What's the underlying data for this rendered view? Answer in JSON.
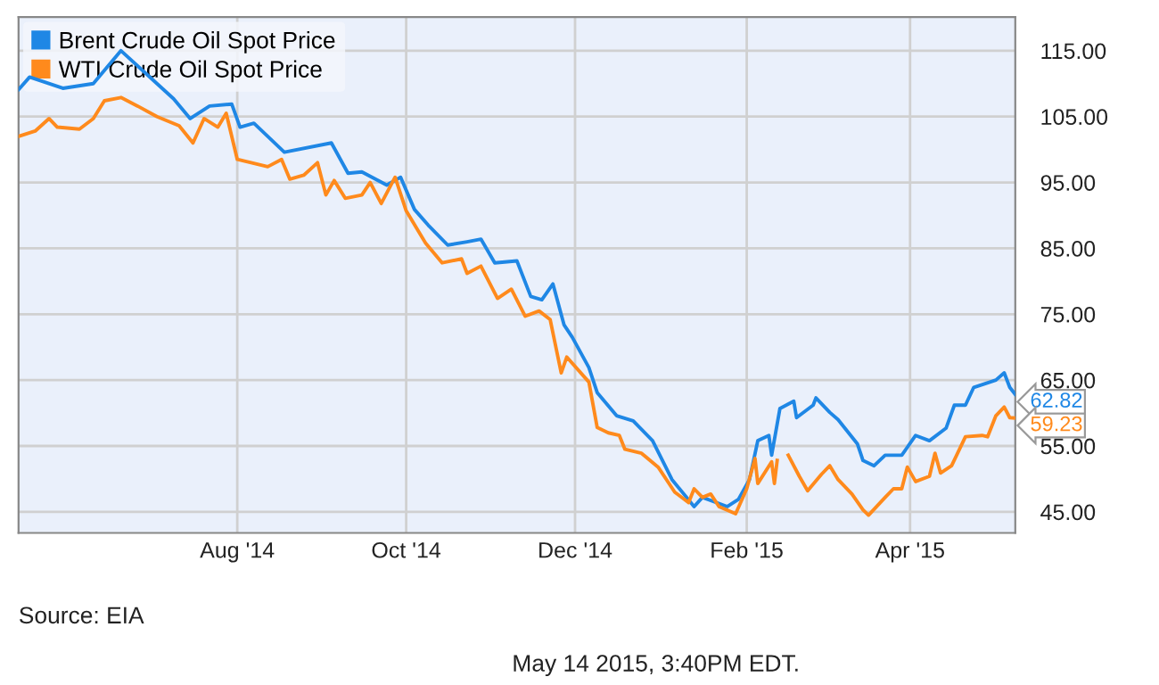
{
  "chart_data": {
    "type": "line",
    "legend": "top left",
    "grid": true,
    "marker": "none",
    "line_style": "solid",
    "xlim": [
      "2014-05-14",
      "2015-05-09"
    ],
    "ylim": [
      41.8,
      120.1
    ],
    "xticks": [
      {
        "value": "2014-08-01",
        "label": "Aug '14"
      },
      {
        "value": "2014-10-01",
        "label": "Oct '14"
      },
      {
        "value": "2014-12-01",
        "label": "Dec '14"
      },
      {
        "value": "2015-02-01",
        "label": "Feb '15"
      },
      {
        "value": "2015-04-01",
        "label": "Apr '15"
      }
    ],
    "yticks": [
      {
        "value": 45,
        "label": "45.00"
      },
      {
        "value": 55,
        "label": "55.00"
      },
      {
        "value": 65,
        "label": "65.00"
      },
      {
        "value": 75,
        "label": "75.00"
      },
      {
        "value": 85,
        "label": "85.00"
      },
      {
        "value": 95,
        "label": "95.00"
      },
      {
        "value": 105,
        "label": "105.00"
      },
      {
        "value": 115,
        "label": "115.00"
      }
    ],
    "series": [
      {
        "name": "Brent Crude Oil Spot Price",
        "color": "#1f87e5",
        "x": [
          "2014-05-14",
          "2014-05-18",
          "2014-05-30",
          "2014-06-10",
          "2014-06-20",
          "2014-07-03",
          "2014-07-09",
          "2014-07-15",
          "2014-07-22",
          "2014-07-30",
          "2014-08-02",
          "2014-08-07",
          "2014-08-18",
          "2014-09-04",
          "2014-09-10",
          "2014-09-15",
          "2014-09-24",
          "2014-09-29",
          "2014-10-04",
          "2014-10-09",
          "2014-10-16",
          "2014-10-23",
          "2014-10-28",
          "2014-11-02",
          "2014-11-10",
          "2014-11-15",
          "2014-11-19",
          "2014-11-23",
          "2014-11-27",
          "2014-11-30",
          "2014-12-06",
          "2014-12-09",
          "2014-12-16",
          "2014-12-22",
          "2014-12-29",
          "2015-01-05",
          "2015-01-13",
          "2015-01-16",
          "2015-01-25",
          "2015-01-29",
          "2015-02-02",
          "2015-02-05",
          "2015-02-09",
          "2015-02-10",
          "2015-02-13",
          "2015-02-18",
          "2015-02-19",
          "2015-02-25",
          "2015-02-26",
          "2015-03-03",
          "2015-03-06",
          "2015-03-13",
          "2015-03-15",
          "2015-03-19",
          "2015-03-23",
          "2015-03-29",
          "2015-04-03",
          "2015-04-08",
          "2015-04-14",
          "2015-04-17",
          "2015-04-21",
          "2015-04-24",
          "2015-05-02",
          "2015-05-05",
          "2015-05-07",
          "2015-05-09"
        ],
        "values": [
          109.1,
          111,
          109.3,
          110,
          115,
          110,
          107.7,
          104.7,
          106.6,
          106.9,
          103.4,
          104,
          99.6,
          101,
          96.4,
          96.6,
          94.6,
          95.8,
          90.9,
          88.5,
          85.5,
          86,
          86.4,
          82.8,
          83.1,
          77.7,
          77.2,
          79.6,
          73.4,
          71.5,
          66.9,
          63.1,
          59.6,
          58.8,
          55.8,
          49.9,
          45.8,
          47.2,
          45.8,
          46.9,
          49.9,
          55.8,
          56.6,
          53.6,
          60.7,
          61.8,
          59.3,
          61.2,
          62.3,
          60.1,
          59,
          55.3,
          52.8,
          52,
          53.6,
          53.6,
          56.6,
          55.8,
          57.7,
          61.2,
          61.2,
          63.9,
          65,
          66.1,
          63.9,
          62.82
        ]
      },
      {
        "name": "WTI Crude Oil Spot Price",
        "color": "#ff8a1c",
        "x": [
          "2014-05-14",
          "2014-05-20",
          "2014-05-25",
          "2014-05-28",
          "2014-06-05",
          "2014-06-10",
          "2014-06-14",
          "2014-06-20",
          "2014-06-26",
          "2014-07-03",
          "2014-07-11",
          "2014-07-16",
          "2014-07-20",
          "2014-07-25",
          "2014-07-28",
          "2014-08-01",
          "2014-08-06",
          "2014-08-12",
          "2014-08-17",
          "2014-08-20",
          "2014-08-25",
          "2014-08-30",
          "2014-09-02",
          "2014-09-05",
          "2014-09-09",
          "2014-09-15",
          "2014-09-18",
          "2014-09-22",
          "2014-09-27",
          "2014-10-01",
          "2014-10-08",
          "2014-10-14",
          "2014-10-21",
          "2014-10-23",
          "2014-10-28",
          "2014-11-03",
          "2014-11-08",
          "2014-11-13",
          "2014-11-18",
          "2014-11-22",
          "2014-11-26",
          "2014-11-28",
          "2014-12-06",
          "2014-12-09",
          "2014-12-13",
          "2014-12-17",
          "2014-12-19",
          "2014-12-25",
          "2014-12-31",
          "2015-01-06",
          "2015-01-11",
          "2015-01-13",
          "2015-01-16",
          "2015-01-19",
          "2015-01-22",
          "2015-01-28",
          "2015-02-01",
          "2015-02-04",
          "2015-02-05",
          "2015-02-10",
          "2015-02-11",
          "2015-02-12",
          "2015-02-14",
          "2015-02-16",
          "2015-02-20",
          "2015-02-23",
          "2015-02-28",
          "2015-03-03",
          "2015-03-06",
          "2015-03-11",
          "2015-03-15",
          "2015-03-17",
          "2015-03-23",
          "2015-03-26",
          "2015-03-29",
          "2015-03-31",
          "2015-04-03",
          "2015-04-08",
          "2015-04-10",
          "2015-04-12",
          "2015-04-16",
          "2015-04-21",
          "2015-04-27",
          "2015-04-29",
          "2015-05-02",
          "2015-05-05",
          "2015-05-07",
          "2015-05-09"
        ],
        "values": [
          102,
          102.8,
          104.7,
          103.4,
          103.1,
          104.7,
          107.4,
          107.9,
          106.6,
          105,
          103.6,
          101,
          104.7,
          103.4,
          105.5,
          98.5,
          98,
          97.4,
          98.5,
          95.5,
          96.1,
          98,
          93.1,
          95.3,
          92.6,
          93.1,
          95,
          91.8,
          95.8,
          90.7,
          85.8,
          82.8,
          83.4,
          81.2,
          82.3,
          77.4,
          78.8,
          74.7,
          75.5,
          74.2,
          66.1,
          68.5,
          64.7,
          57.8,
          57,
          56.6,
          54.5,
          53.9,
          51.8,
          48,
          46.4,
          48.5,
          47.2,
          47.7,
          45.8,
          44.7,
          48.5,
          53.1,
          49.3,
          52.6,
          49.3,
          52.8,
          null,
          53.6,
          50.4,
          48.2,
          50.7,
          52,
          49.9,
          47.7,
          45.3,
          44.5,
          47.2,
          48.5,
          48.5,
          51.8,
          49.6,
          50.4,
          53.9,
          50.9,
          52,
          56.4,
          56.6,
          56.4,
          59.6,
          60.9,
          59.3,
          59.23
        ]
      }
    ],
    "annotations": [
      {
        "text": "62.82",
        "x": "2015-05-09",
        "y": 62.82
      },
      {
        "text": "59.23",
        "x": "2015-05-09",
        "y": 59.23
      },
      "Source: EIA",
      "May 14 2015, 3:40PM EDT."
    ]
  }
}
